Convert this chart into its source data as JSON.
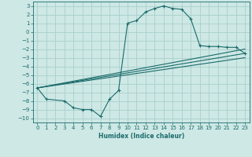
{
  "xlabel": "Humidex (Indice chaleur)",
  "background_color": "#cde8e5",
  "grid_color": "#aacfcc",
  "line_color": "#1a6b6b",
  "xlim": [
    -0.5,
    23.5
  ],
  "ylim": [
    -10.5,
    3.5
  ],
  "xticks": [
    0,
    1,
    2,
    3,
    4,
    5,
    6,
    7,
    8,
    9,
    10,
    11,
    12,
    13,
    14,
    15,
    16,
    17,
    18,
    19,
    20,
    21,
    22,
    23
  ],
  "yticks": [
    -10,
    -9,
    -8,
    -7,
    -6,
    -5,
    -4,
    -3,
    -2,
    -1,
    0,
    1,
    2,
    3
  ],
  "curve_x": [
    0,
    1,
    3,
    4,
    5,
    6,
    7,
    8,
    9,
    10,
    11,
    12,
    13,
    14,
    15,
    16,
    17,
    18,
    19,
    20,
    21,
    22,
    23
  ],
  "curve_y": [
    -6.5,
    -7.8,
    -8.0,
    -8.8,
    -9.0,
    -9.0,
    -9.8,
    -7.8,
    -6.8,
    1.0,
    1.3,
    2.3,
    2.7,
    3.0,
    2.7,
    2.6,
    1.5,
    -1.6,
    -1.7,
    -1.7,
    -1.8,
    -1.8,
    -2.5
  ],
  "line1_x": [
    0,
    23
  ],
  "line1_y": [
    -6.5,
    -2.0
  ],
  "line2_x": [
    0,
    23
  ],
  "line2_y": [
    -6.5,
    -2.5
  ],
  "line3_x": [
    0,
    23
  ],
  "line3_y": [
    -6.5,
    -3.0
  ]
}
